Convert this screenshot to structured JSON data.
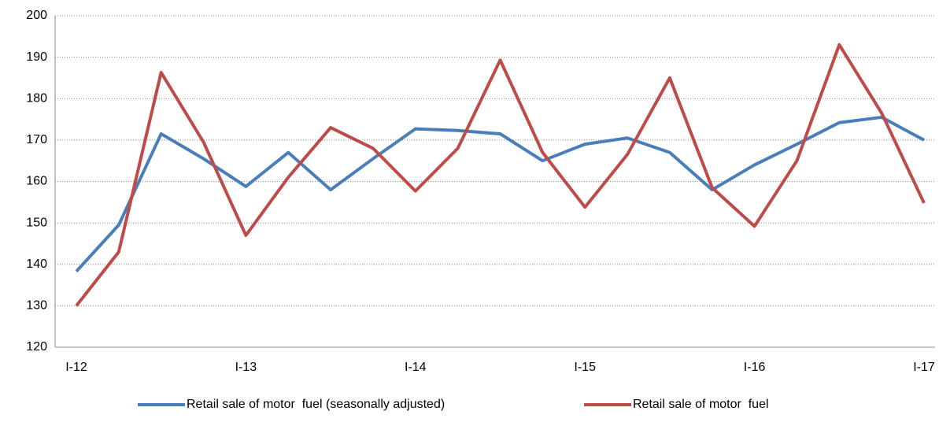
{
  "chart_data": {
    "type": "line",
    "categories": [
      "I-12",
      null,
      null,
      null,
      "I-13",
      null,
      null,
      null,
      "I-14",
      null,
      null,
      null,
      "I-15",
      null,
      null,
      null,
      "I-16",
      null,
      null,
      null,
      "I-17"
    ],
    "series": [
      {
        "name": "Retail sale of motor  fuel (seasonally adjusted)",
        "color": "#4a7ebb",
        "values": [
          138.3,
          149.5,
          171.5,
          165.5,
          158.8,
          167,
          158,
          165.5,
          172.7,
          172.3,
          171.5,
          165,
          169,
          170.5,
          167,
          158,
          164,
          169,
          174.2,
          175.5,
          170
        ]
      },
      {
        "name": "Retail sale of motor  fuel",
        "color": "#be4b48",
        "values": [
          130,
          143,
          186.3,
          169.5,
          147,
          161,
          173,
          168,
          157.7,
          168,
          189.3,
          167,
          153.8,
          166.5,
          185,
          158.5,
          149.2,
          165,
          193,
          176.5,
          154.8
        ]
      }
    ],
    "ylim": [
      120,
      200
    ],
    "yticks": [
      120,
      130,
      140,
      150,
      160,
      170,
      180,
      190,
      200
    ],
    "grid": true,
    "legend": "bottom"
  }
}
